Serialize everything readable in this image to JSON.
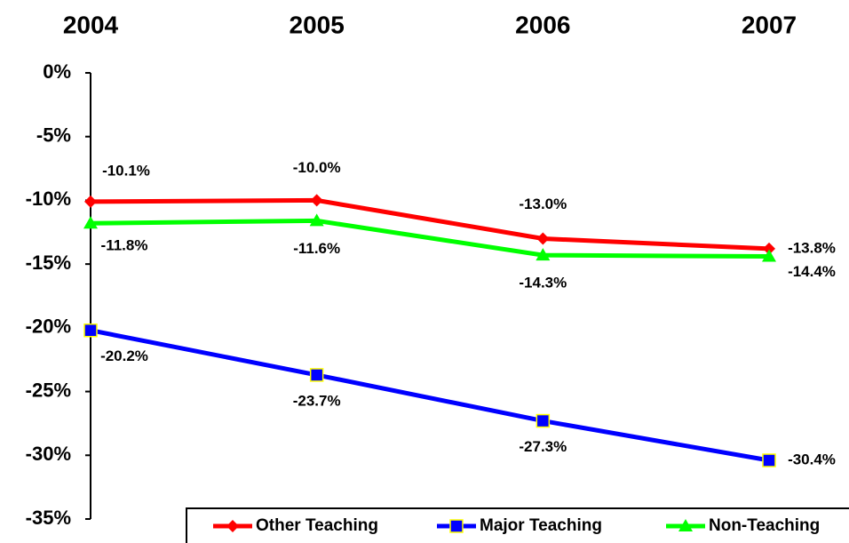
{
  "chart_data": {
    "type": "line",
    "categories": [
      "2004",
      "2005",
      "2006",
      "2007"
    ],
    "series": [
      {
        "name": "Other Teaching",
        "color": "#ff0000",
        "marker": "diamond",
        "values": [
          -10.1,
          -10.0,
          -13.0,
          -13.8
        ],
        "value_labels": [
          "-10.1%",
          "-10.0%",
          "-13.0%",
          "-13.8%"
        ]
      },
      {
        "name": "Major Teaching",
        "color": "#0000ff",
        "marker": "square",
        "values": [
          -20.2,
          -23.7,
          -27.3,
          -30.4
        ],
        "value_labels": [
          "-20.2%",
          "-23.7%",
          "-27.3%",
          "-30.4%"
        ]
      },
      {
        "name": "Non-Teaching",
        "color": "#00ff00",
        "marker": "triangle",
        "values": [
          -11.8,
          -11.6,
          -14.3,
          -14.4
        ],
        "value_labels": [
          "-11.8%",
          "-11.6%",
          "-14.3%",
          "-14.4%"
        ]
      }
    ],
    "ylim": [
      -35,
      0
    ],
    "yticks": [
      {
        "value": 0,
        "label": "0%"
      },
      {
        "value": -5,
        "label": "-5%"
      },
      {
        "value": -10,
        "label": "-10%"
      },
      {
        "value": -15,
        "label": "-15%"
      },
      {
        "value": -20,
        "label": "-20%"
      },
      {
        "value": -25,
        "label": "-25%"
      },
      {
        "value": -30,
        "label": "-30%"
      },
      {
        "value": -35,
        "label": "-35%"
      }
    ],
    "legend": "bottom-right"
  }
}
